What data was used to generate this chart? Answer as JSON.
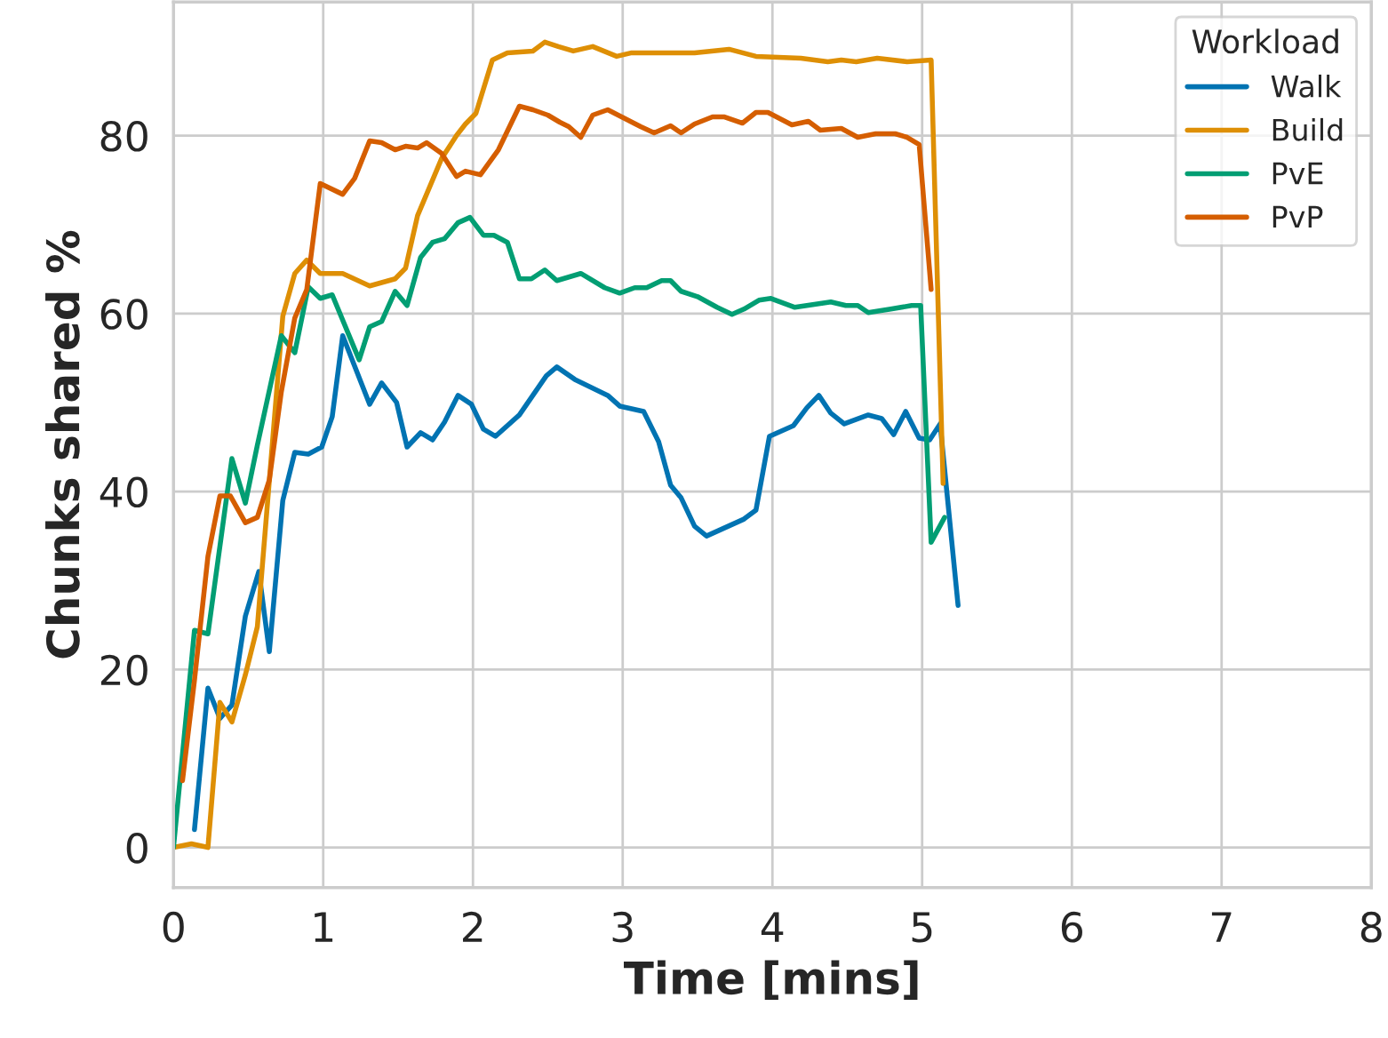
{
  "chart_data": {
    "type": "line",
    "xlabel": "Time [mins]",
    "ylabel": "Chunks shared %",
    "legend_title": "Workload",
    "legend": "top right",
    "grid": true,
    "line_style": "solid",
    "xlim": [
      0,
      8
    ],
    "xticks": [
      0,
      1,
      2,
      3,
      4,
      5,
      6,
      7,
      8
    ],
    "ylim": [
      -4.5,
      95
    ],
    "yticks": [
      0,
      20,
      40,
      60,
      80
    ],
    "series": [
      {
        "name": "Walk",
        "color": "#0173b2",
        "x": [
          0.14,
          0.23,
          0.31,
          0.39,
          0.48,
          0.57,
          0.64,
          0.73,
          0.81,
          0.9,
          0.99,
          1.06,
          1.13,
          1.31,
          1.39,
          1.49,
          1.56,
          1.65,
          1.73,
          1.81,
          1.9,
          1.99,
          2.07,
          2.15,
          2.31,
          2.49,
          2.56,
          2.68,
          2.9,
          2.98,
          3.14,
          3.24,
          3.32,
          3.39,
          3.48,
          3.56,
          3.81,
          3.89,
          3.98,
          4.14,
          4.23,
          4.31,
          4.39,
          4.48,
          4.64,
          4.73,
          4.81,
          4.89,
          4.98,
          5.05,
          5.12,
          5.24
        ],
        "values": [
          2,
          17.9,
          14.5,
          16,
          26,
          31,
          22,
          39,
          44.4,
          44.2,
          45,
          48.4,
          57.5,
          49.8,
          52.2,
          50,
          45,
          46.6,
          45.8,
          47.8,
          50.8,
          49.8,
          47,
          46.2,
          48.6,
          53,
          54,
          52.6,
          50.8,
          49.6,
          49,
          45.6,
          40.7,
          39.3,
          36.1,
          35,
          36.9,
          37.9,
          46.2,
          47.4,
          49.4,
          50.8,
          48.8,
          47.6,
          48.6,
          48.2,
          46.4,
          49,
          46,
          45.8,
          47.6,
          27.2
        ]
      },
      {
        "name": "Build",
        "color": "#de8f05",
        "x": [
          0,
          0.12,
          0.23,
          0.31,
          0.39,
          0.48,
          0.56,
          0.73,
          0.81,
          0.89,
          0.98,
          1.13,
          1.31,
          1.48,
          1.55,
          1.63,
          1.73,
          1.79,
          1.89,
          1.95,
          2.02,
          2.13,
          2.23,
          2.4,
          2.48,
          2.57,
          2.67,
          2.8,
          2.96,
          3.06,
          3.48,
          3.71,
          3.89,
          4.19,
          4.37,
          4.46,
          4.56,
          4.7,
          4.9,
          5.06,
          5.14
        ],
        "values": [
          0,
          0.4,
          0,
          16.3,
          14.1,
          19.4,
          24.8,
          59.7,
          64.5,
          66,
          64.5,
          64.5,
          63.1,
          63.9,
          65.1,
          71,
          75,
          77.4,
          80,
          81.3,
          82.5,
          88.5,
          89.3,
          89.5,
          90.5,
          90,
          89.5,
          90,
          88.9,
          89.3,
          89.3,
          89.7,
          88.9,
          88.7,
          88.3,
          88.5,
          88.3,
          88.7,
          88.3,
          88.5,
          40.9
        ]
      },
      {
        "name": "PvE",
        "color": "#029e73",
        "x": [
          0,
          0.14,
          0.23,
          0.39,
          0.48,
          0.56,
          0.72,
          0.81,
          0.9,
          0.98,
          1.06,
          1.24,
          1.31,
          1.39,
          1.48,
          1.56,
          1.65,
          1.73,
          1.81,
          1.9,
          1.98,
          2.07,
          2.14,
          2.23,
          2.31,
          2.39,
          2.48,
          2.56,
          2.72,
          2.88,
          2.98,
          3.08,
          3.16,
          3.26,
          3.32,
          3.39,
          3.5,
          3.63,
          3.73,
          3.81,
          3.91,
          3.99,
          4.15,
          4.39,
          4.49,
          4.57,
          4.64,
          4.79,
          4.93,
          4.99,
          5.06,
          5.15
        ],
        "values": [
          0,
          24.4,
          24,
          43.7,
          38.7,
          45.2,
          57.5,
          55.6,
          63,
          61.7,
          62.1,
          54.8,
          58.5,
          59.1,
          62.5,
          60.9,
          66.3,
          68,
          68.4,
          70.2,
          70.8,
          68.8,
          68.8,
          68,
          63.9,
          63.9,
          64.9,
          63.7,
          64.5,
          62.9,
          62.3,
          62.9,
          62.9,
          63.7,
          63.7,
          62.5,
          61.9,
          60.7,
          59.9,
          60.5,
          61.5,
          61.7,
          60.7,
          61.3,
          60.9,
          60.9,
          60.1,
          60.5,
          60.9,
          60.9,
          34.3,
          37.1
        ]
      },
      {
        "name": "PvP",
        "color": "#d55e00",
        "x": [
          0.06,
          0.14,
          0.23,
          0.31,
          0.38,
          0.48,
          0.56,
          0.64,
          0.72,
          0.81,
          0.89,
          0.98,
          1.13,
          1.21,
          1.31,
          1.39,
          1.48,
          1.55,
          1.63,
          1.69,
          1.79,
          1.89,
          1.95,
          2.05,
          2.17,
          2.31,
          2.4,
          2.5,
          2.58,
          2.64,
          2.72,
          2.8,
          2.9,
          3.12,
          3.21,
          3.32,
          3.39,
          3.48,
          3.6,
          3.68,
          3.8,
          3.89,
          3.97,
          4.13,
          4.24,
          4.32,
          4.46,
          4.57,
          4.69,
          4.82,
          4.9,
          4.98,
          5.06
        ],
        "values": [
          7.5,
          18.8,
          32.7,
          39.5,
          39.5,
          36.5,
          37.1,
          41.3,
          51.2,
          59.5,
          62.7,
          74.6,
          73.4,
          75.2,
          79.4,
          79.2,
          78.4,
          78.8,
          78.6,
          79.2,
          78,
          75.4,
          76,
          75.6,
          78.4,
          83.3,
          82.9,
          82.3,
          81.5,
          81,
          79.8,
          82.3,
          82.9,
          81,
          80.3,
          81.1,
          80.3,
          81.3,
          82.1,
          82.1,
          81.4,
          82.6,
          82.6,
          81.2,
          81.6,
          80.6,
          80.8,
          79.8,
          80.2,
          80.2,
          79.8,
          79,
          62.7
        ]
      }
    ]
  }
}
